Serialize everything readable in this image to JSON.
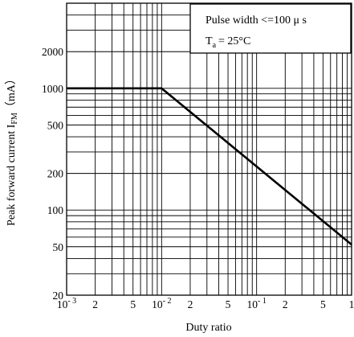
{
  "chart_data": {
    "type": "line",
    "xscale": "log",
    "yscale": "log",
    "xlim": [
      0.001,
      1
    ],
    "ylim": [
      20,
      5000
    ],
    "grid": true,
    "xlabel": "Duty ratio",
    "ylabel": {
      "text": "Peak forward current I",
      "subscript": "FM",
      "unit": "（mA）"
    },
    "xticks": [
      {
        "value": 0.001,
        "base": "10",
        "exp": "- 3"
      },
      {
        "value": 0.002,
        "label": "2"
      },
      {
        "value": 0.005,
        "label": "5"
      },
      {
        "value": 0.01,
        "base": "10",
        "exp": "- 2"
      },
      {
        "value": 0.02,
        "label": "2"
      },
      {
        "value": 0.05,
        "label": "5"
      },
      {
        "value": 0.1,
        "base": "10",
        "exp": "- 1"
      },
      {
        "value": 0.2,
        "label": "2"
      },
      {
        "value": 0.5,
        "label": "5"
      },
      {
        "value": 1,
        "label": "1"
      }
    ],
    "yticks": [
      {
        "value": 20,
        "label": "20"
      },
      {
        "value": 50,
        "label": "50"
      },
      {
        "value": 100,
        "label": "100"
      },
      {
        "value": 200,
        "label": "200"
      },
      {
        "value": 500,
        "label": "500"
      },
      {
        "value": 1000,
        "label": "1000"
      },
      {
        "value": 2000,
        "label": "2000"
      }
    ],
    "series": [
      {
        "x": [
          0.001,
          0.01,
          1
        ],
        "y": [
          1000,
          1000,
          52
        ]
      }
    ],
    "annotation": {
      "line1": "Pulse width <=100 μ s",
      "line2_main": "T",
      "line2_sub": "a",
      "line2_rest": "= 25°C"
    }
  }
}
